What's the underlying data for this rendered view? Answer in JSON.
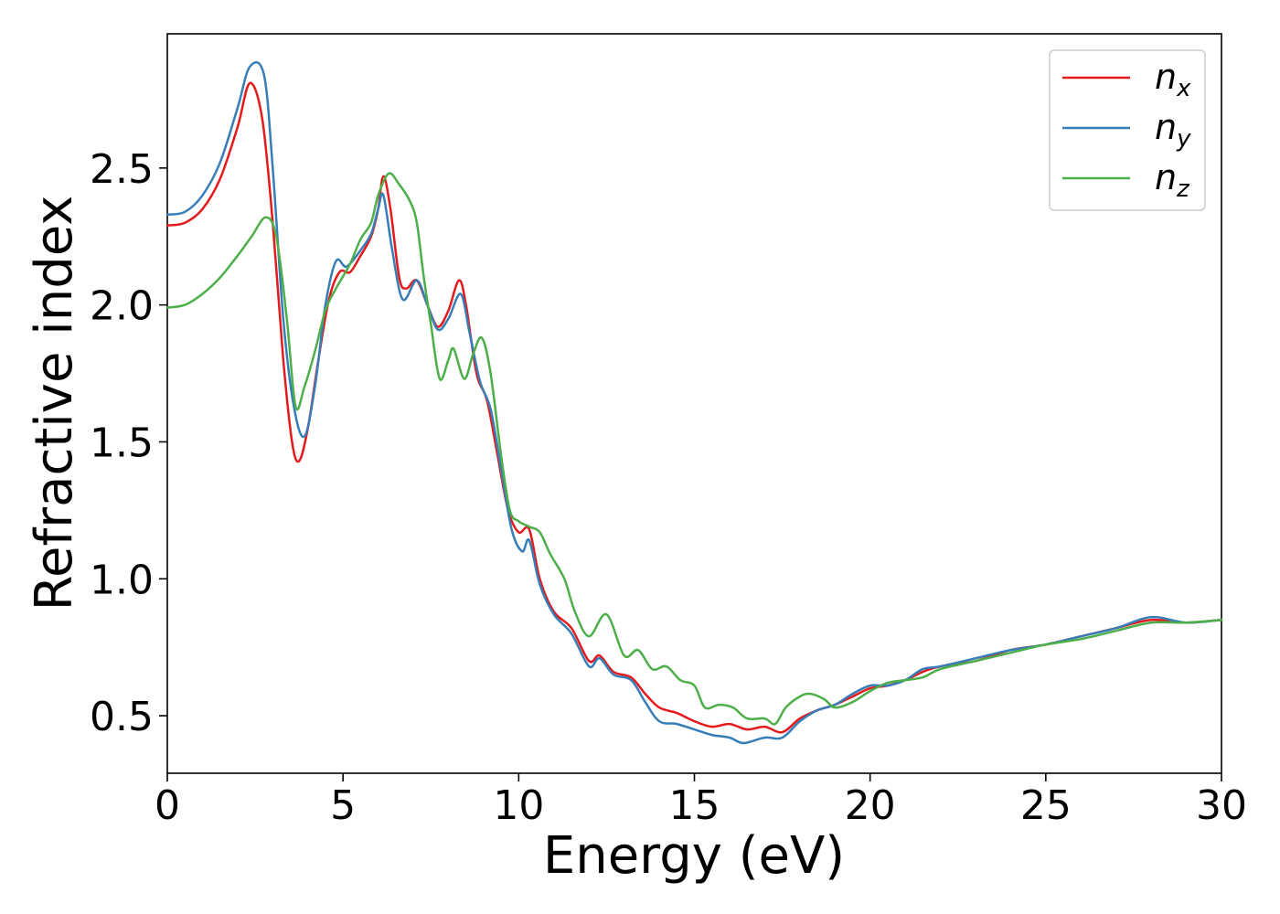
{
  "chart_data": {
    "type": "line",
    "title": "",
    "xlabel": "Energy (eV)",
    "ylabel": "Refractive index",
    "xlim": [
      0,
      30
    ],
    "ylim": [
      0.29,
      2.99
    ],
    "xticks": [
      0,
      5,
      10,
      15,
      20,
      25,
      30
    ],
    "xtick_labels": [
      "0",
      "5",
      "10",
      "15",
      "20",
      "25",
      "30"
    ],
    "yticks": [
      0.5,
      1.0,
      1.5,
      2.0,
      2.5
    ],
    "ytick_labels": [
      "0.5",
      "1.0",
      "1.5",
      "2.0",
      "2.5"
    ],
    "grid": false,
    "legend_position": "top-right",
    "series": [
      {
        "name": "n_x",
        "label_base": "n",
        "label_sub": "x",
        "color": "#e41a1c",
        "points": [
          [
            0,
            2.29
          ],
          [
            0.5,
            2.3
          ],
          [
            1.0,
            2.35
          ],
          [
            1.5,
            2.46
          ],
          [
            2.0,
            2.65
          ],
          [
            2.35,
            2.81
          ],
          [
            2.7,
            2.68
          ],
          [
            3.0,
            2.3
          ],
          [
            3.3,
            1.8
          ],
          [
            3.55,
            1.5
          ],
          [
            3.75,
            1.43
          ],
          [
            4.0,
            1.55
          ],
          [
            4.3,
            1.8
          ],
          [
            4.6,
            2.02
          ],
          [
            4.9,
            2.12
          ],
          [
            5.2,
            2.12
          ],
          [
            5.5,
            2.18
          ],
          [
            5.8,
            2.25
          ],
          [
            6.0,
            2.35
          ],
          [
            6.15,
            2.47
          ],
          [
            6.35,
            2.35
          ],
          [
            6.6,
            2.1
          ],
          [
            6.8,
            2.06
          ],
          [
            7.1,
            2.09
          ],
          [
            7.4,
            2.0
          ],
          [
            7.7,
            1.92
          ],
          [
            8.0,
            1.98
          ],
          [
            8.3,
            2.09
          ],
          [
            8.5,
            2.0
          ],
          [
            8.8,
            1.75
          ],
          [
            9.1,
            1.65
          ],
          [
            9.4,
            1.45
          ],
          [
            9.7,
            1.25
          ],
          [
            10.0,
            1.17
          ],
          [
            10.3,
            1.18
          ],
          [
            10.6,
            1.0
          ],
          [
            11.0,
            0.88
          ],
          [
            11.5,
            0.82
          ],
          [
            12.0,
            0.7
          ],
          [
            12.3,
            0.72
          ],
          [
            12.7,
            0.66
          ],
          [
            13.2,
            0.64
          ],
          [
            13.6,
            0.58
          ],
          [
            14.0,
            0.53
          ],
          [
            14.5,
            0.51
          ],
          [
            15.0,
            0.48
          ],
          [
            15.5,
            0.46
          ],
          [
            16.0,
            0.47
          ],
          [
            16.5,
            0.45
          ],
          [
            17.0,
            0.46
          ],
          [
            17.5,
            0.44
          ],
          [
            18.0,
            0.49
          ],
          [
            18.5,
            0.52
          ],
          [
            19.0,
            0.54
          ],
          [
            19.5,
            0.57
          ],
          [
            20.0,
            0.6
          ],
          [
            20.5,
            0.61
          ],
          [
            21.0,
            0.63
          ],
          [
            21.5,
            0.66
          ],
          [
            22.0,
            0.68
          ],
          [
            23.0,
            0.7
          ],
          [
            24.0,
            0.74
          ],
          [
            25.0,
            0.76
          ],
          [
            26.0,
            0.79
          ],
          [
            27.0,
            0.82
          ],
          [
            28.0,
            0.85
          ],
          [
            29.0,
            0.84
          ],
          [
            30.0,
            0.85
          ]
        ]
      },
      {
        "name": "n_y",
        "label_base": "n",
        "label_sub": "y",
        "color": "#377eb8",
        "points": [
          [
            0,
            2.33
          ],
          [
            0.5,
            2.34
          ],
          [
            1.0,
            2.4
          ],
          [
            1.5,
            2.52
          ],
          [
            2.0,
            2.72
          ],
          [
            2.35,
            2.87
          ],
          [
            2.75,
            2.84
          ],
          [
            3.0,
            2.5
          ],
          [
            3.3,
            1.95
          ],
          [
            3.6,
            1.63
          ],
          [
            3.9,
            1.52
          ],
          [
            4.2,
            1.7
          ],
          [
            4.5,
            2.0
          ],
          [
            4.8,
            2.16
          ],
          [
            5.1,
            2.14
          ],
          [
            5.5,
            2.2
          ],
          [
            5.8,
            2.26
          ],
          [
            6.0,
            2.35
          ],
          [
            6.15,
            2.4
          ],
          [
            6.4,
            2.2
          ],
          [
            6.7,
            2.02
          ],
          [
            7.1,
            2.09
          ],
          [
            7.4,
            2.0
          ],
          [
            7.7,
            1.91
          ],
          [
            8.0,
            1.95
          ],
          [
            8.35,
            2.04
          ],
          [
            8.6,
            1.9
          ],
          [
            8.9,
            1.72
          ],
          [
            9.2,
            1.62
          ],
          [
            9.5,
            1.4
          ],
          [
            9.8,
            1.18
          ],
          [
            10.1,
            1.1
          ],
          [
            10.3,
            1.14
          ],
          [
            10.6,
            0.98
          ],
          [
            11.0,
            0.87
          ],
          [
            11.5,
            0.8
          ],
          [
            12.0,
            0.68
          ],
          [
            12.3,
            0.71
          ],
          [
            12.7,
            0.65
          ],
          [
            13.2,
            0.63
          ],
          [
            13.6,
            0.55
          ],
          [
            14.0,
            0.48
          ],
          [
            14.5,
            0.47
          ],
          [
            15.0,
            0.45
          ],
          [
            15.5,
            0.43
          ],
          [
            16.0,
            0.42
          ],
          [
            16.4,
            0.4
          ],
          [
            17.0,
            0.42
          ],
          [
            17.5,
            0.42
          ],
          [
            18.0,
            0.48
          ],
          [
            18.5,
            0.52
          ],
          [
            19.0,
            0.54
          ],
          [
            19.5,
            0.58
          ],
          [
            20.0,
            0.61
          ],
          [
            20.5,
            0.61
          ],
          [
            21.0,
            0.63
          ],
          [
            21.5,
            0.67
          ],
          [
            22.0,
            0.68
          ],
          [
            23.0,
            0.71
          ],
          [
            24.0,
            0.74
          ],
          [
            25.0,
            0.76
          ],
          [
            26.0,
            0.79
          ],
          [
            27.0,
            0.82
          ],
          [
            28.0,
            0.86
          ],
          [
            29.0,
            0.84
          ],
          [
            30.0,
            0.85
          ]
        ]
      },
      {
        "name": "n_z",
        "label_base": "n",
        "label_sub": "z",
        "color": "#4daf4a",
        "points": [
          [
            0,
            1.99
          ],
          [
            0.5,
            2.0
          ],
          [
            1.0,
            2.04
          ],
          [
            1.5,
            2.1
          ],
          [
            2.0,
            2.18
          ],
          [
            2.4,
            2.25
          ],
          [
            2.8,
            2.32
          ],
          [
            3.1,
            2.25
          ],
          [
            3.4,
            1.95
          ],
          [
            3.65,
            1.63
          ],
          [
            3.9,
            1.7
          ],
          [
            4.2,
            1.83
          ],
          [
            4.5,
            1.98
          ],
          [
            4.8,
            2.06
          ],
          [
            5.2,
            2.15
          ],
          [
            5.5,
            2.24
          ],
          [
            5.8,
            2.3
          ],
          [
            6.0,
            2.4
          ],
          [
            6.3,
            2.48
          ],
          [
            6.6,
            2.44
          ],
          [
            6.9,
            2.38
          ],
          [
            7.1,
            2.3
          ],
          [
            7.3,
            2.1
          ],
          [
            7.5,
            1.93
          ],
          [
            7.75,
            1.73
          ],
          [
            8.0,
            1.8
          ],
          [
            8.15,
            1.84
          ],
          [
            8.45,
            1.73
          ],
          [
            8.7,
            1.82
          ],
          [
            8.95,
            1.88
          ],
          [
            9.2,
            1.75
          ],
          [
            9.5,
            1.45
          ],
          [
            9.75,
            1.25
          ],
          [
            10.0,
            1.21
          ],
          [
            10.3,
            1.19
          ],
          [
            10.6,
            1.17
          ],
          [
            10.9,
            1.09
          ],
          [
            11.3,
            1.0
          ],
          [
            11.6,
            0.88
          ],
          [
            12.0,
            0.79
          ],
          [
            12.5,
            0.87
          ],
          [
            13.0,
            0.72
          ],
          [
            13.4,
            0.74
          ],
          [
            13.8,
            0.67
          ],
          [
            14.2,
            0.68
          ],
          [
            14.6,
            0.63
          ],
          [
            15.0,
            0.61
          ],
          [
            15.3,
            0.53
          ],
          [
            15.7,
            0.54
          ],
          [
            16.1,
            0.53
          ],
          [
            16.5,
            0.49
          ],
          [
            17.0,
            0.49
          ],
          [
            17.3,
            0.47
          ],
          [
            17.6,
            0.53
          ],
          [
            18.0,
            0.57
          ],
          [
            18.3,
            0.58
          ],
          [
            18.7,
            0.56
          ],
          [
            19.0,
            0.53
          ],
          [
            19.5,
            0.55
          ],
          [
            20.0,
            0.59
          ],
          [
            20.5,
            0.62
          ],
          [
            21.0,
            0.63
          ],
          [
            21.5,
            0.64
          ],
          [
            22.0,
            0.67
          ],
          [
            23.0,
            0.7
          ],
          [
            24.0,
            0.73
          ],
          [
            25.0,
            0.76
          ],
          [
            26.0,
            0.78
          ],
          [
            27.0,
            0.81
          ],
          [
            28.0,
            0.84
          ],
          [
            29.0,
            0.84
          ],
          [
            30.0,
            0.85
          ]
        ]
      }
    ]
  }
}
